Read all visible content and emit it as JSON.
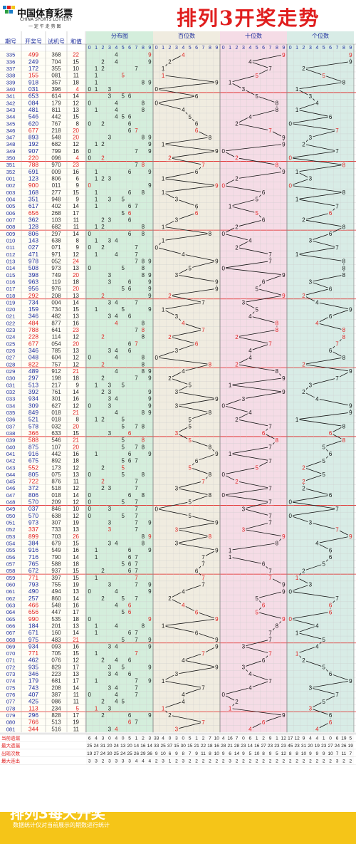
{
  "header": {
    "logo_text": "中国体育彩票",
    "logo_sub": "CHINA SPORTS LOTTERY",
    "logo_sub2": "一 定 午 走 势 图",
    "title": "排列3开奖走势"
  },
  "footer": {
    "title": "排列3每天开奖",
    "subtitle": "数据统计仅对当前展示的期数进行统计"
  },
  "colors": {
    "red": "#e01e1e",
    "blue": "#1e2e9e",
    "dist_bg": "#d4eedc",
    "hundreds_bg": "#f0ece0",
    "tens_bg": "#f5dce6",
    "ones_bg": "#d8ece6",
    "yellow": "#f5c518"
  },
  "chart_data": {
    "type": "table",
    "columns": [
      "期号",
      "开奖号",
      "试机号",
      "和值",
      "分布图",
      "百位数",
      "十位数",
      "个位数"
    ],
    "digit_header": [
      "0",
      "1",
      "2",
      "3",
      "4",
      "5",
      "6",
      "7",
      "8",
      "9"
    ],
    "rows": [
      [
        "335",
        "499",
        "368",
        "22"
      ],
      [
        "336",
        "249",
        "704",
        "15"
      ],
      [
        "337",
        "172",
        "355",
        "10"
      ],
      [
        "338",
        "155",
        "081",
        "11"
      ],
      [
        "339",
        "918",
        "357",
        "18"
      ],
      [
        "340",
        "031",
        "396",
        "4"
      ],
      [
        "341",
        "653",
        "614",
        "14"
      ],
      [
        "342",
        "084",
        "179",
        "12"
      ],
      [
        "343",
        "481",
        "811",
        "13"
      ],
      [
        "344",
        "546",
        "442",
        "15"
      ],
      [
        "345",
        "620",
        "767",
        "8"
      ],
      [
        "346",
        "677",
        "218",
        "20"
      ],
      [
        "347",
        "893",
        "548",
        "20"
      ],
      [
        "348",
        "192",
        "682",
        "12"
      ],
      [
        "349",
        "907",
        "799",
        "16"
      ],
      [
        "350",
        "220",
        "096",
        "4"
      ],
      [
        "351",
        "788",
        "970",
        "23"
      ],
      [
        "352",
        "691",
        "009",
        "16"
      ],
      [
        "001",
        "123",
        "806",
        "6"
      ],
      [
        "002",
        "900",
        "011",
        "9"
      ],
      [
        "003",
        "168",
        "277",
        "15"
      ],
      [
        "004",
        "351",
        "948",
        "9"
      ],
      [
        "005",
        "617",
        "402",
        "14"
      ],
      [
        "006",
        "656",
        "268",
        "17"
      ],
      [
        "007",
        "362",
        "103",
        "11"
      ],
      [
        "008",
        "128",
        "682",
        "11"
      ],
      [
        "009",
        "806",
        "297",
        "14"
      ],
      [
        "010",
        "143",
        "638",
        "8"
      ],
      [
        "011",
        "027",
        "071",
        "9"
      ],
      [
        "012",
        "471",
        "971",
        "12"
      ],
      [
        "013",
        "978",
        "052",
        "24"
      ],
      [
        "014",
        "508",
        "973",
        "13"
      ],
      [
        "015",
        "398",
        "749",
        "20"
      ],
      [
        "016",
        "963",
        "119",
        "18"
      ],
      [
        "017",
        "956",
        "976",
        "20"
      ],
      [
        "018",
        "292",
        "208",
        "13"
      ],
      [
        "019",
        "734",
        "004",
        "14"
      ],
      [
        "020",
        "159",
        "734",
        "15"
      ],
      [
        "021",
        "346",
        "482",
        "13"
      ],
      [
        "022",
        "484",
        "877",
        "16"
      ],
      [
        "023",
        "788",
        "641",
        "23"
      ],
      [
        "024",
        "228",
        "114",
        "12"
      ],
      [
        "025",
        "677",
        "054",
        "20"
      ],
      [
        "026",
        "346",
        "785",
        "13"
      ],
      [
        "027",
        "048",
        "604",
        "12"
      ],
      [
        "028",
        "822",
        "757",
        "12"
      ],
      [
        "029",
        "489",
        "912",
        "21"
      ],
      [
        "030",
        "297",
        "198",
        "18"
      ],
      [
        "031",
        "513",
        "217",
        "9"
      ],
      [
        "032",
        "392",
        "761",
        "14"
      ],
      [
        "033",
        "934",
        "301",
        "16"
      ],
      [
        "034",
        "309",
        "627",
        "12"
      ],
      [
        "035",
        "849",
        "018",
        "21"
      ],
      [
        "036",
        "521",
        "018",
        "8"
      ],
      [
        "037",
        "578",
        "032",
        "20"
      ],
      [
        "038",
        "366",
        "633",
        "15"
      ],
      [
        "039",
        "588",
        "546",
        "21"
      ],
      [
        "040",
        "875",
        "107",
        "20"
      ],
      [
        "041",
        "916",
        "442",
        "16"
      ],
      [
        "042",
        "675",
        "892",
        "18"
      ],
      [
        "043",
        "552",
        "173",
        "12"
      ],
      [
        "044",
        "805",
        "075",
        "13"
      ],
      [
        "045",
        "722",
        "876",
        "11"
      ],
      [
        "046",
        "372",
        "518",
        "12"
      ],
      [
        "047",
        "806",
        "018",
        "14"
      ],
      [
        "048",
        "570",
        "209",
        "12"
      ],
      [
        "049",
        "037",
        "846",
        "10"
      ],
      [
        "050",
        "570",
        "638",
        "12"
      ],
      [
        "051",
        "973",
        "307",
        "19"
      ],
      [
        "052",
        "337",
        "733",
        "13"
      ],
      [
        "053",
        "899",
        "703",
        "26"
      ],
      [
        "054",
        "384",
        "679",
        "15"
      ],
      [
        "055",
        "916",
        "549",
        "16"
      ],
      [
        "056",
        "716",
        "790",
        "14"
      ],
      [
        "057",
        "765",
        "588",
        "18"
      ],
      [
        "058",
        "672",
        "937",
        "15"
      ],
      [
        "059",
        "771",
        "397",
        "15"
      ],
      [
        "060",
        "793",
        "755",
        "19"
      ],
      [
        "061",
        "490",
        "494",
        "13"
      ],
      [
        "062",
        "257",
        "860",
        "14"
      ],
      [
        "063",
        "466",
        "548",
        "16"
      ],
      [
        "064",
        "656",
        "447",
        "17"
      ],
      [
        "065",
        "990",
        "535",
        "18"
      ],
      [
        "066",
        "184",
        "201",
        "13"
      ],
      [
        "067",
        "671",
        "160",
        "14"
      ],
      [
        "068",
        "975",
        "483",
        "21"
      ],
      [
        "069",
        "934",
        "093",
        "16"
      ],
      [
        "070",
        "771",
        "705",
        "15"
      ],
      [
        "071",
        "462",
        "076",
        "12"
      ],
      [
        "072",
        "935",
        "829",
        "17"
      ],
      [
        "073",
        "346",
        "223",
        "13"
      ],
      [
        "074",
        "179",
        "681",
        "17"
      ],
      [
        "075",
        "743",
        "208",
        "14"
      ],
      [
        "076",
        "407",
        "387",
        "11"
      ],
      [
        "077",
        "425",
        "086",
        "11"
      ],
      [
        "078",
        "113",
        "234",
        "5"
      ],
      [
        "079",
        "296",
        "828",
        "17"
      ],
      [
        "080",
        "766",
        "513",
        "19"
      ],
      [
        "081",
        "344",
        "516",
        "11"
      ]
    ],
    "stats_labels": [
      "当前遗漏",
      "最大遗漏",
      "出现次数",
      "最大连出"
    ],
    "stats": [
      [
        "6",
        "4",
        "3",
        "0",
        "4",
        "0",
        "5",
        "1",
        "2",
        "3",
        "33",
        "4",
        "0",
        "3",
        "0",
        "5",
        "1",
        "2",
        "7",
        "10",
        "4",
        "16",
        "7",
        "0",
        "6",
        "1",
        "2",
        "9",
        "1",
        "12",
        "17",
        "12",
        "9",
        "4",
        "4",
        "1",
        "0",
        "6",
        "19",
        "5"
      ],
      [
        "25",
        "24",
        "31",
        "20",
        "24",
        "13",
        "20",
        "14",
        "16",
        "14",
        "33",
        "25",
        "37",
        "15",
        "30",
        "15",
        "21",
        "22",
        "18",
        "16",
        "28",
        "21",
        "28",
        "23",
        "14",
        "16",
        "27",
        "23",
        "23",
        "23",
        "45",
        "23",
        "31",
        "20",
        "19",
        "23",
        "27",
        "24",
        "26",
        "19"
      ],
      [
        "19",
        "27",
        "24",
        "30",
        "25",
        "24",
        "25",
        "26",
        "29",
        "36",
        "9",
        "10",
        "6",
        "9",
        "8",
        "7",
        "9",
        "11",
        "8",
        "10",
        "9",
        "6",
        "14",
        "9",
        "5",
        "10",
        "8",
        "9",
        "5",
        "12",
        "8",
        "8",
        "10",
        "9",
        "9",
        "9",
        "10",
        "7",
        "11",
        "7"
      ],
      [
        "3",
        "3",
        "2",
        "3",
        "3",
        "3",
        "3",
        "4",
        "4",
        "4",
        "2",
        "3",
        "1",
        "2",
        "3",
        "2",
        "2",
        "2",
        "2",
        "2",
        "2",
        "3",
        "2",
        "2",
        "2",
        "2",
        "2",
        "2",
        "2",
        "2",
        "2",
        "2",
        "2",
        "2",
        "2",
        "2",
        "2",
        "3",
        "2",
        "2"
      ]
    ]
  }
}
